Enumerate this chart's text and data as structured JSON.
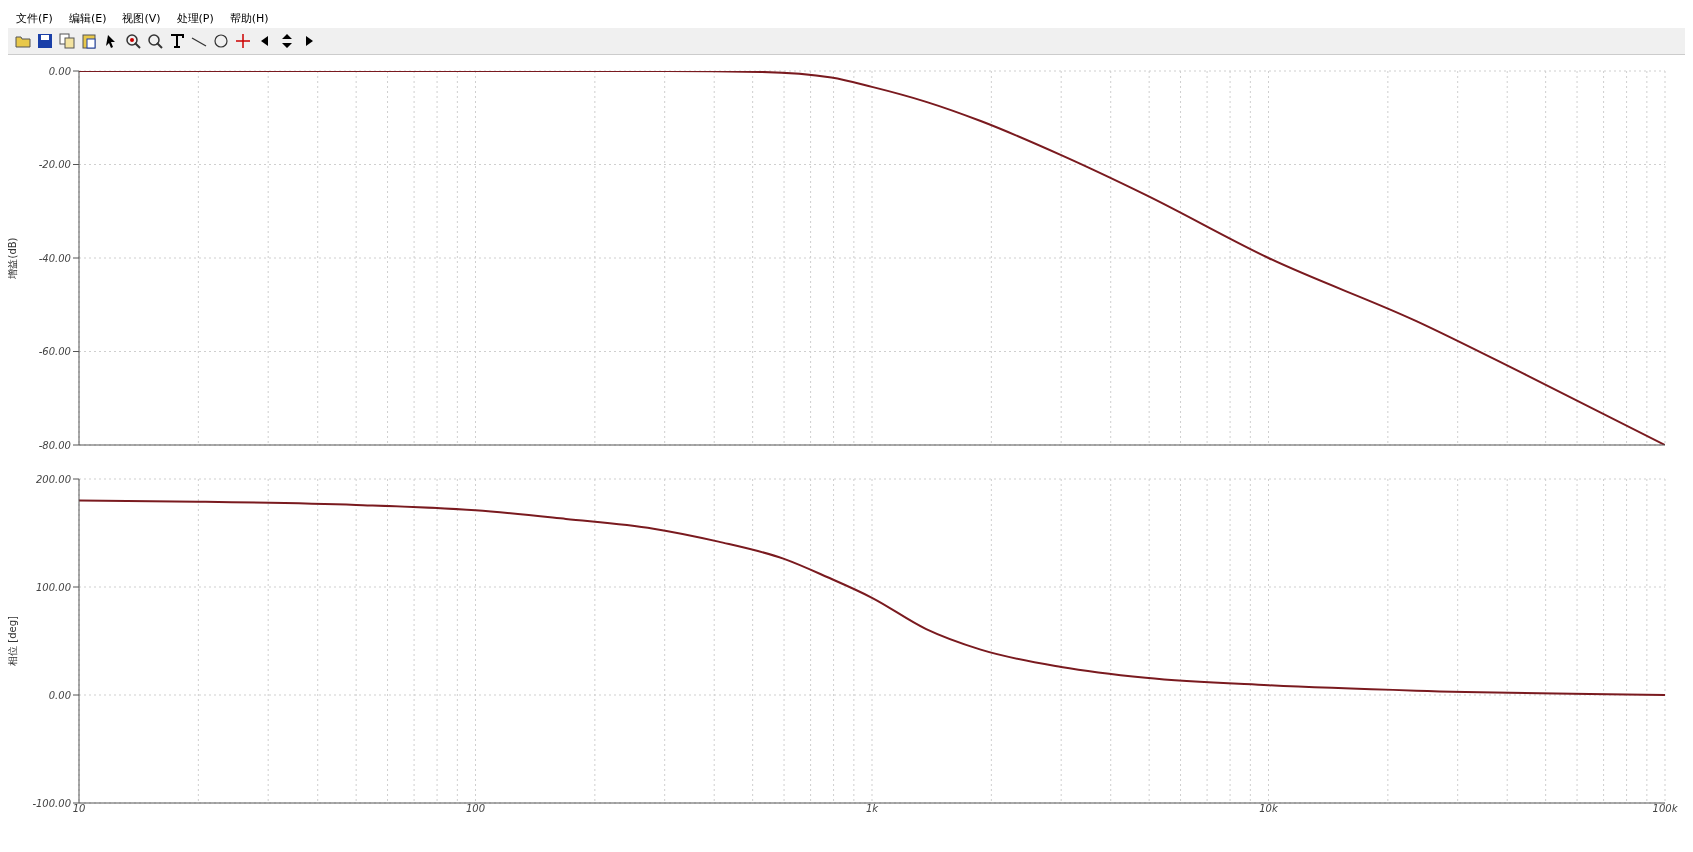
{
  "chart_data": [
    {
      "type": "line",
      "ylabel": "增益(dB)",
      "annotations": [
        "文件(F)",
        "编辑(E)",
        "视图(V)",
        "处理(P)",
        "帮助(H)"
      ],
      "xlim": [
        10,
        100000
      ],
      "log": "x",
      "xticks": [
        {
          "value": 10,
          "label": null
        },
        {
          "value": 20,
          "label": null
        },
        {
          "value": 30,
          "label": null
        },
        {
          "value": 40,
          "label": null
        },
        {
          "value": 50,
          "label": null
        },
        {
          "value": 60,
          "label": null
        },
        {
          "value": 70,
          "label": null
        },
        {
          "value": 80,
          "label": null
        },
        {
          "value": 90,
          "label": null
        },
        {
          "value": 100,
          "label": null
        },
        {
          "value": 200,
          "label": null
        },
        {
          "value": 300,
          "label": null
        },
        {
          "value": 400,
          "label": null
        },
        {
          "value": 500,
          "label": null
        },
        {
          "value": 600,
          "label": null
        },
        {
          "value": 700,
          "label": null
        },
        {
          "value": 800,
          "label": null
        },
        {
          "value": 900,
          "label": null
        },
        {
          "value": 1000,
          "label": null
        },
        {
          "value": 2000,
          "label": null
        },
        {
          "value": 3000,
          "label": null
        },
        {
          "value": 4000,
          "label": null
        },
        {
          "value": 5000,
          "label": null
        },
        {
          "value": 6000,
          "label": null
        },
        {
          "value": 7000,
          "label": null
        },
        {
          "value": 8000,
          "label": null
        },
        {
          "value": 9000,
          "label": null
        },
        {
          "value": 10000,
          "label": null
        },
        {
          "value": 20000,
          "label": null
        },
        {
          "value": 30000,
          "label": null
        },
        {
          "value": 40000,
          "label": null
        },
        {
          "value": 50000,
          "label": null
        },
        {
          "value": 60000,
          "label": null
        },
        {
          "value": 70000,
          "label": null
        },
        {
          "value": 80000,
          "label": null
        },
        {
          "value": 90000,
          "label": null
        },
        {
          "value": 100000,
          "label": null
        }
      ],
      "ylim": [
        -80,
        0
      ],
      "yticks": [
        {
          "value": -80,
          "label": "-80.00"
        },
        {
          "value": -60,
          "label": "-60.00"
        },
        {
          "value": -40,
          "label": "-40.00"
        },
        {
          "value": -20,
          "label": "-20.00"
        },
        {
          "value": 0,
          "label": "0.00"
        }
      ],
      "tick_labels": "y",
      "grid": true,
      "marker": "none",
      "line_style": "solid",
      "series": [
        {
          "color": "#7a1a1f",
          "x": [
            10,
            100,
            300,
            525,
            790,
            1000,
            1370,
            1880,
            3000,
            4900,
            10000,
            23600,
            44600,
            100000
          ],
          "values": [
            0,
            0,
            0,
            -0.2,
            -1.4,
            -3.4,
            -6.6,
            -10.7,
            -18,
            -26.5,
            -40,
            -53.5,
            -65,
            -80
          ]
        }
      ]
    },
    {
      "type": "line",
      "ylabel": "相位 [deg]",
      "xlim": [
        10,
        100000
      ],
      "log": "x",
      "xticks": [
        10,
        {
          "value": 20,
          "label": null
        },
        {
          "value": 30,
          "label": null
        },
        {
          "value": 40,
          "label": null
        },
        {
          "value": 50,
          "label": null
        },
        {
          "value": 60,
          "label": null
        },
        {
          "value": 70,
          "label": null
        },
        {
          "value": 80,
          "label": null
        },
        {
          "value": 90,
          "label": null
        },
        100,
        {
          "value": 200,
          "label": null
        },
        {
          "value": 300,
          "label": null
        },
        {
          "value": 400,
          "label": null
        },
        {
          "value": 500,
          "label": null
        },
        {
          "value": 600,
          "label": null
        },
        {
          "value": 700,
          "label": null
        },
        {
          "value": 800,
          "label": null
        },
        {
          "value": 900,
          "label": null
        },
        {
          "value": 1000,
          "label": "1k"
        },
        {
          "value": 2000,
          "label": null
        },
        {
          "value": 3000,
          "label": null
        },
        {
          "value": 4000,
          "label": null
        },
        {
          "value": 5000,
          "label": null
        },
        {
          "value": 6000,
          "label": null
        },
        {
          "value": 7000,
          "label": null
        },
        {
          "value": 8000,
          "label": null
        },
        {
          "value": 9000,
          "label": null
        },
        {
          "value": 10000,
          "label": "10k"
        },
        {
          "value": 20000,
          "label": null
        },
        {
          "value": 30000,
          "label": null
        },
        {
          "value": 40000,
          "label": null
        },
        {
          "value": 50000,
          "label": null
        },
        {
          "value": 60000,
          "label": null
        },
        {
          "value": 70000,
          "label": null
        },
        {
          "value": 80000,
          "label": null
        },
        {
          "value": 90000,
          "label": null
        },
        {
          "value": 100000,
          "label": "100k"
        }
      ],
      "ylim": [
        -100,
        200
      ],
      "yticks": [
        {
          "value": -100,
          "label": "-100.00"
        },
        {
          "value": 0,
          "label": "0.00"
        },
        {
          "value": 100,
          "label": "100.00"
        },
        {
          "value": 200,
          "label": "200.00"
        }
      ],
      "grid": true,
      "marker": "none",
      "line_style": "solid",
      "series": [
        {
          "color": "#7a1a1f",
          "x": [
            10,
            20,
            50,
            100,
            169,
            281,
            410,
            600,
            773,
            1000,
            1370,
            1880,
            3000,
            4900,
            10000,
            23600,
            100000
          ],
          "values": [
            180,
            179,
            176,
            171,
            163,
            154,
            142,
            126,
            109,
            90,
            61,
            42,
            26,
            16,
            9,
            4,
            0
          ]
        }
      ]
    }
  ]
}
